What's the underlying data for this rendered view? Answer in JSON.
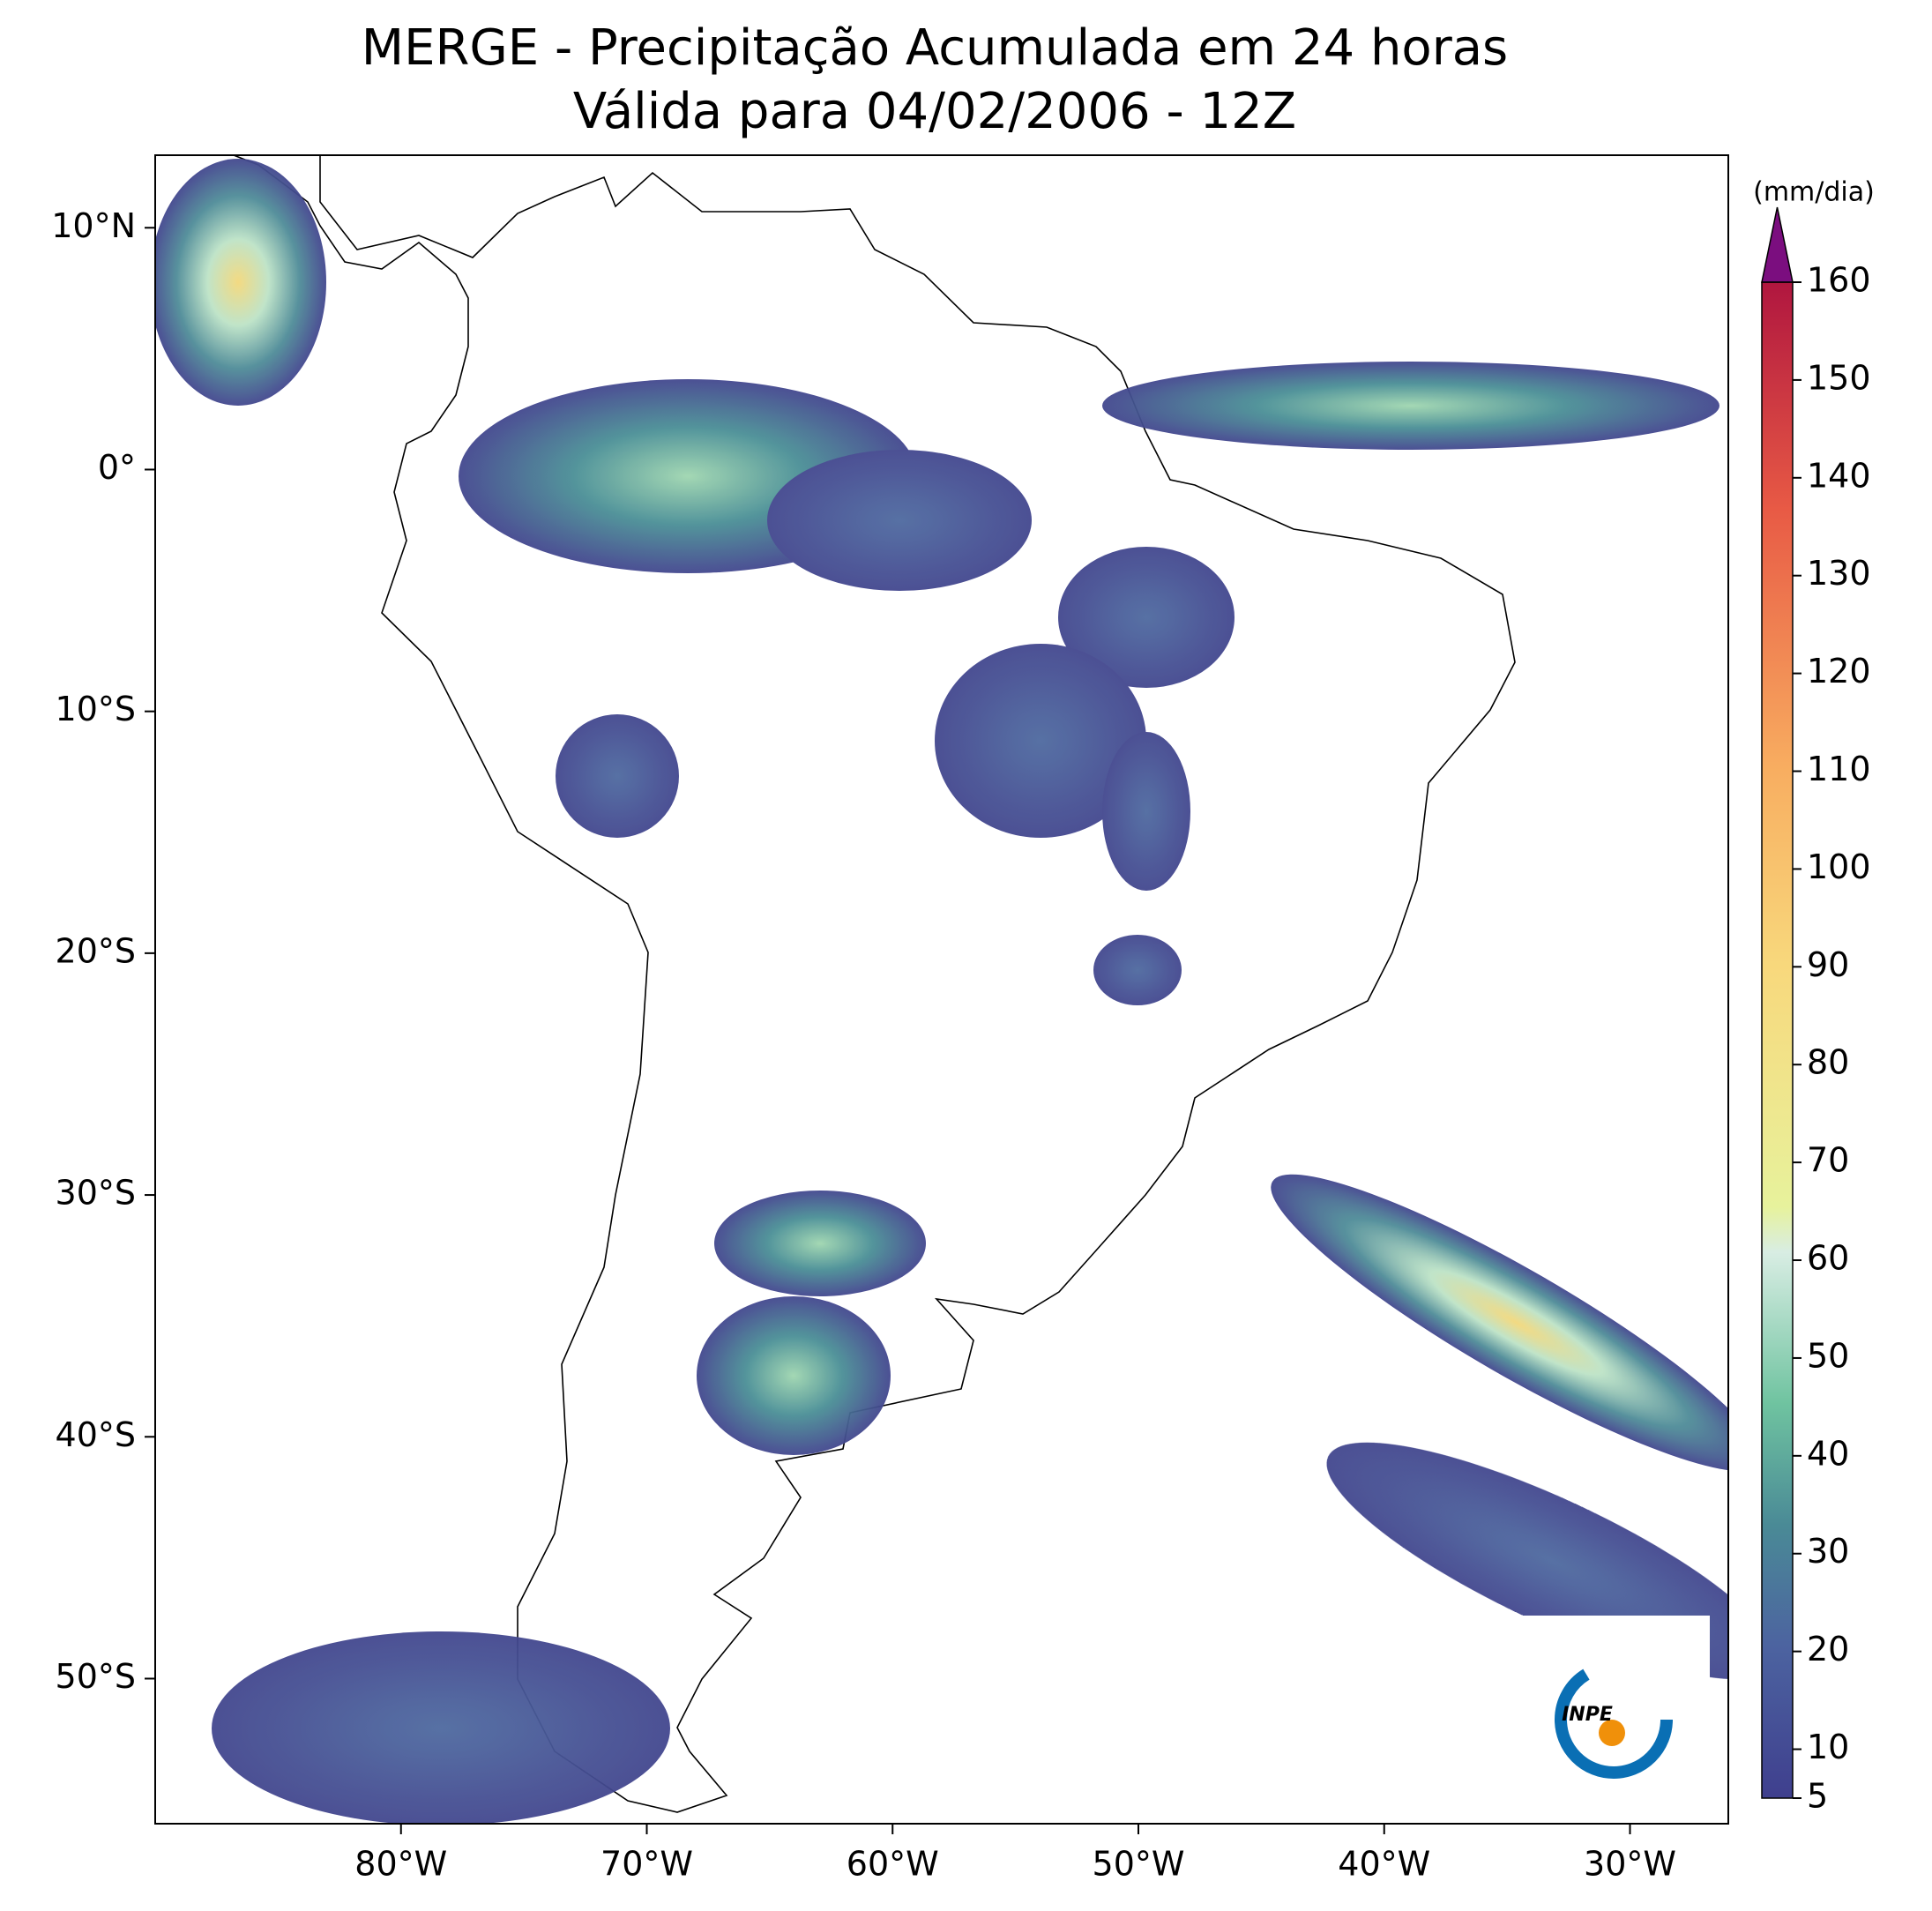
{
  "title": {
    "line1": "MERGE - Precipitação Acumulada em 24 horas",
    "line2": "Válida para 04/02/2006 - 12Z"
  },
  "map": {
    "xlim": [
      -90,
      -26
    ],
    "ylim": [
      -56,
      13
    ],
    "xticks": [
      {
        "value": -80,
        "label": "80°W"
      },
      {
        "value": -70,
        "label": "70°W"
      },
      {
        "value": -60,
        "label": "60°W"
      },
      {
        "value": -50,
        "label": "50°W"
      },
      {
        "value": -40,
        "label": "40°W"
      },
      {
        "value": -30,
        "label": "30°W"
      }
    ],
    "yticks": [
      {
        "value": 10,
        "label": "10°N"
      },
      {
        "value": 0,
        "label": "0°"
      },
      {
        "value": -10,
        "label": "10°S"
      },
      {
        "value": -20,
        "label": "20°S"
      },
      {
        "value": -30,
        "label": "30°S"
      },
      {
        "value": -40,
        "label": "40°S"
      },
      {
        "value": -50,
        "label": "50°S"
      }
    ]
  },
  "colorbar": {
    "unit": "(mm/dia)",
    "range": [
      5,
      160
    ],
    "ticks": [
      5,
      10,
      20,
      30,
      40,
      50,
      60,
      70,
      80,
      90,
      100,
      110,
      120,
      130,
      140,
      150,
      160
    ]
  },
  "logo": {
    "text": "INPE"
  }
}
